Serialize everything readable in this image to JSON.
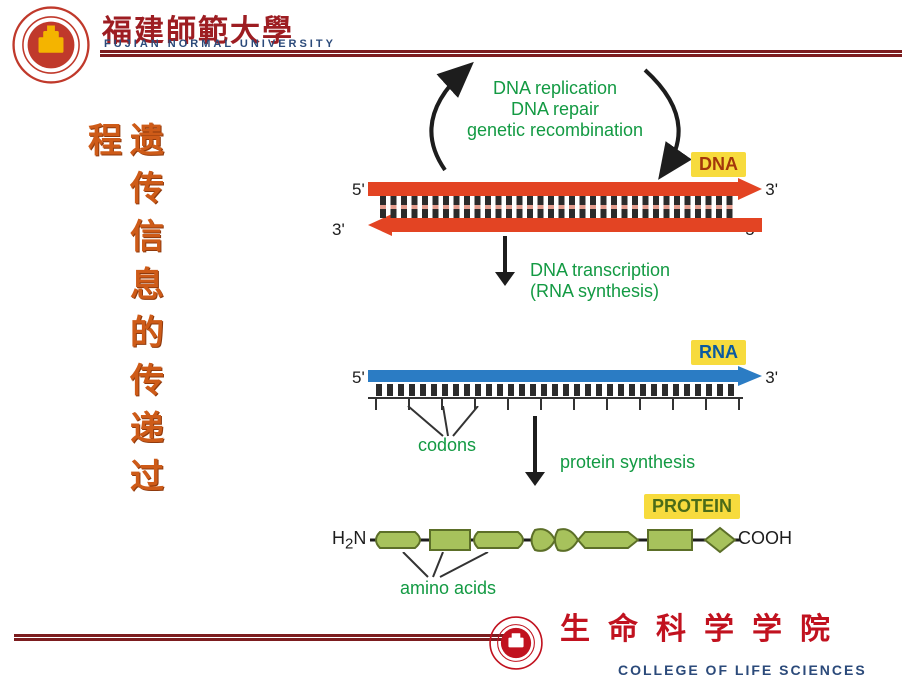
{
  "colors": {
    "rule": "#7c1d1f",
    "seal_outer": "#c0392b",
    "seal_inner": "#f4b400",
    "uni_cn": "#9d1d22",
    "uni_en": "#2b4a7a",
    "title": "#ce5b18",
    "title_shadow": "#8f3a0d",
    "green": "#139a43",
    "dna_red": "#e34423",
    "dna_bar": "#2b2b2b",
    "dna_gap": "#e59d8e",
    "dna_chip_bg": "#f7db3d",
    "dna_chip_tx": "#a4370b",
    "rna_blue": "#2b7cc4",
    "rna_chip_bg": "#f7db3d",
    "rna_chip_tx": "#0b5aa0",
    "prot_chip_bg": "#f7db3d",
    "prot_chip_tx": "#4a6b18",
    "prot_fill": "#a7c25c",
    "prot_edge": "#5c6f28",
    "black": "#1d1d1d",
    "dept_red": "#c1121f",
    "dept_en": "#2b4a7a"
  },
  "header": {
    "uni_cn": "福建師範大學",
    "uni_en": "FUJIAN NORMAL UNIVERSITY"
  },
  "title": {
    "col1": [
      "遗",
      "传",
      "信",
      "息",
      "的",
      "传",
      "递",
      "过"
    ],
    "col2": [
      "程"
    ]
  },
  "diagram": {
    "rep1": "DNA replication",
    "rep2": "DNA repair",
    "rep3": "genetic recombination",
    "dna_chip": "DNA",
    "fivep": "5'",
    "threep": "3'",
    "trans1": "DNA transcription",
    "trans2": "(RNA synthesis)",
    "rna_chip": "RNA",
    "codons": "codons",
    "psyn": "protein synthesis",
    "prot_chip": "PROTEIN",
    "h2n": "H",
    "h2n_sub": "2",
    "h2n_tail": "N",
    "cooh": "COOH",
    "aa": "amino acids"
  },
  "footer": {
    "dept_cn": "生命科学学院",
    "dept_en": "COLLEGE OF LIFE SCIENCES"
  }
}
